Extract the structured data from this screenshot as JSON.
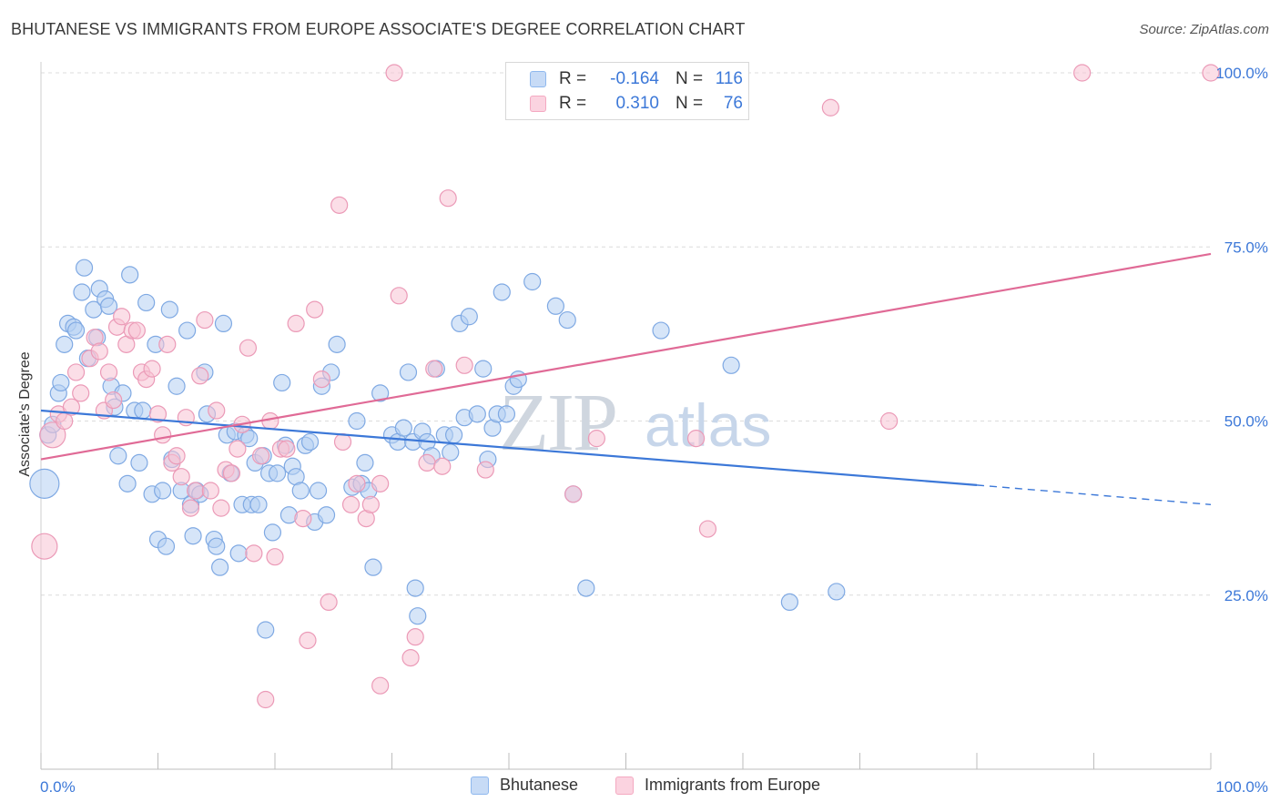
{
  "title": "BHUTANESE VS IMMIGRANTS FROM EUROPE ASSOCIATE'S DEGREE CORRELATION CHART",
  "source": "Source: ZipAtlas.com",
  "watermark": {
    "part1": "ZIP",
    "part2": "atlas"
  },
  "legend_top": {
    "rows": [
      {
        "r_label": "R =",
        "r_value": "-0.164",
        "n_label": "N =",
        "n_value": "116",
        "color": "#8fb8ee"
      },
      {
        "r_label": "R =",
        "r_value": "0.310",
        "n_label": "N =",
        "n_value": "76",
        "color": "#f4a9c1"
      }
    ]
  },
  "legend_bottom": [
    {
      "label": "Bhutanese",
      "color": "#8fb8ee"
    },
    {
      "label": "Immigrants from Europe",
      "color": "#f4a9c1"
    }
  ],
  "chart_data": {
    "type": "scatter",
    "title": "BHUTANESE VS IMMIGRANTS FROM EUROPE ASSOCIATE'S DEGREE CORRELATION CHART",
    "xlabel": "",
    "ylabel": "Associate's Degree",
    "xlim": [
      0,
      100
    ],
    "ylim": [
      0,
      100
    ],
    "x_tick_labels": [
      "0.0%",
      "100.0%"
    ],
    "y_tick_labels": [
      "25.0%",
      "50.0%",
      "75.0%",
      "100.0%"
    ],
    "y_ticks": [
      25,
      50,
      75,
      100
    ],
    "grid": true,
    "series": [
      {
        "name": "Bhutanese",
        "color": "#3c78d8",
        "fill": "#b5cff3",
        "trend": {
          "x": [
            0,
            80,
            100
          ],
          "y": [
            51.5,
            40.8,
            38.0
          ],
          "solid_until": 80
        },
        "points": [
          [
            0.3,
            41,
            3
          ],
          [
            0.6,
            48,
            1
          ],
          [
            1,
            49.5,
            1
          ],
          [
            1.5,
            54,
            1
          ],
          [
            1.7,
            55.5,
            1
          ],
          [
            2,
            61,
            1
          ],
          [
            2.3,
            64,
            1
          ],
          [
            2.8,
            63.5,
            1
          ],
          [
            3,
            63,
            1
          ],
          [
            3.5,
            68.5,
            1
          ],
          [
            3.7,
            72,
            1
          ],
          [
            4,
            59,
            1
          ],
          [
            4.5,
            66,
            1
          ],
          [
            4.8,
            62,
            1
          ],
          [
            5,
            69,
            1
          ],
          [
            5.5,
            67.5,
            1
          ],
          [
            5.8,
            66.5,
            1
          ],
          [
            6,
            55,
            1
          ],
          [
            6.3,
            52,
            1
          ],
          [
            6.6,
            45,
            1
          ],
          [
            7,
            54,
            1
          ],
          [
            7.4,
            41,
            1
          ],
          [
            7.6,
            71,
            1
          ],
          [
            8,
            51.5,
            1
          ],
          [
            8.4,
            44,
            1
          ],
          [
            8.7,
            51.5,
            1
          ],
          [
            9,
            67,
            1
          ],
          [
            9.5,
            39.5,
            1
          ],
          [
            9.8,
            61,
            1
          ],
          [
            10,
            33,
            1
          ],
          [
            10.4,
            40,
            1
          ],
          [
            10.7,
            32,
            1
          ],
          [
            11,
            66,
            1
          ],
          [
            11.2,
            44.5,
            1
          ],
          [
            11.6,
            55,
            1
          ],
          [
            12,
            40,
            1
          ],
          [
            12.5,
            63,
            1
          ],
          [
            12.8,
            38,
            1
          ],
          [
            13,
            33.5,
            1
          ],
          [
            13.3,
            40,
            1
          ],
          [
            13.6,
            39.5,
            1
          ],
          [
            14,
            57,
            1
          ],
          [
            14.2,
            51,
            1
          ],
          [
            14.8,
            33,
            1
          ],
          [
            15,
            32,
            1
          ],
          [
            15.3,
            29,
            1
          ],
          [
            15.6,
            64,
            1
          ],
          [
            15.9,
            48,
            1
          ],
          [
            16.2,
            42.5,
            1
          ],
          [
            16.6,
            48.5,
            1
          ],
          [
            16.9,
            31,
            1
          ],
          [
            17.2,
            38,
            1
          ],
          [
            17.5,
            48,
            1
          ],
          [
            17.8,
            47.5,
            1
          ],
          [
            18,
            38,
            1
          ],
          [
            18.3,
            44,
            1
          ],
          [
            18.6,
            38,
            1
          ],
          [
            19,
            45,
            1
          ],
          [
            19.2,
            20,
            1
          ],
          [
            19.5,
            42.5,
            1
          ],
          [
            19.8,
            34,
            1
          ],
          [
            20.2,
            42.5,
            1
          ],
          [
            20.6,
            55.5,
            1
          ],
          [
            20.9,
            46.5,
            1
          ],
          [
            21.2,
            36.5,
            1
          ],
          [
            21.5,
            43.5,
            1
          ],
          [
            21.8,
            42,
            1
          ],
          [
            22.2,
            40,
            1
          ],
          [
            22.6,
            46.5,
            1
          ],
          [
            23,
            47,
            1
          ],
          [
            23.4,
            35.5,
            1
          ],
          [
            23.7,
            40,
            1
          ],
          [
            24,
            55,
            1
          ],
          [
            24.4,
            36.5,
            1
          ],
          [
            24.8,
            57,
            1
          ],
          [
            25.3,
            61,
            1
          ],
          [
            26.6,
            40.5,
            1
          ],
          [
            27,
            50,
            1
          ],
          [
            27.4,
            41,
            1
          ],
          [
            27.7,
            44,
            1
          ],
          [
            28,
            40,
            1
          ],
          [
            28.4,
            29,
            1
          ],
          [
            29,
            54,
            1
          ],
          [
            30,
            48,
            1
          ],
          [
            30.5,
            47,
            1
          ],
          [
            31,
            49,
            1
          ],
          [
            31.4,
            57,
            1
          ],
          [
            31.8,
            47,
            1
          ],
          [
            32,
            26,
            1
          ],
          [
            32.2,
            22,
            1
          ],
          [
            32.6,
            48.5,
            1
          ],
          [
            33,
            47,
            1
          ],
          [
            33.4,
            45,
            1
          ],
          [
            33.8,
            57.5,
            1
          ],
          [
            34.5,
            48,
            1
          ],
          [
            35,
            45.5,
            1
          ],
          [
            35.3,
            48,
            1
          ],
          [
            35.8,
            64,
            1
          ],
          [
            36.2,
            50.5,
            1
          ],
          [
            36.6,
            65,
            1
          ],
          [
            37.3,
            51,
            1
          ],
          [
            37.8,
            57.5,
            1
          ],
          [
            38.2,
            44.5,
            1
          ],
          [
            38.6,
            49,
            1
          ],
          [
            39,
            51,
            1
          ],
          [
            39.4,
            68.5,
            1
          ],
          [
            39.8,
            51,
            1
          ],
          [
            40.4,
            55,
            1
          ],
          [
            40.8,
            56,
            1
          ],
          [
            42,
            70,
            1
          ],
          [
            44,
            66.5,
            1
          ],
          [
            45,
            64.5,
            1
          ],
          [
            45.5,
            39.5,
            1
          ],
          [
            46.6,
            26,
            1
          ],
          [
            53,
            63,
            1
          ],
          [
            59,
            58,
            1
          ],
          [
            64,
            24,
            1
          ],
          [
            68,
            25.5,
            1
          ]
        ]
      },
      {
        "name": "Immigrants from Europe",
        "color": "#e06a96",
        "fill": "#f7c3d4",
        "trend": {
          "x": [
            0,
            100
          ],
          "y": [
            44.5,
            74.0
          ]
        },
        "points": [
          [
            0.3,
            32,
            2
          ],
          [
            1,
            48,
            2
          ],
          [
            1.5,
            51,
            1
          ],
          [
            2,
            50,
            1
          ],
          [
            2.6,
            52,
            1
          ],
          [
            3,
            57,
            1
          ],
          [
            3.4,
            54,
            1
          ],
          [
            4.2,
            59,
            1
          ],
          [
            4.6,
            62,
            1
          ],
          [
            5,
            60,
            1
          ],
          [
            5.4,
            51.5,
            1
          ],
          [
            5.8,
            57,
            1
          ],
          [
            6.2,
            53,
            1
          ],
          [
            6.5,
            63.5,
            1
          ],
          [
            6.9,
            65,
            1
          ],
          [
            7.3,
            61,
            1
          ],
          [
            7.8,
            63,
            1
          ],
          [
            8.2,
            63,
            1
          ],
          [
            8.6,
            57,
            1
          ],
          [
            9,
            56,
            1
          ],
          [
            9.5,
            57.5,
            1
          ],
          [
            10,
            51,
            1
          ],
          [
            10.4,
            48,
            1
          ],
          [
            10.8,
            61,
            1
          ],
          [
            11.2,
            44,
            1
          ],
          [
            11.6,
            45,
            1
          ],
          [
            12,
            42,
            1
          ],
          [
            12.4,
            50.5,
            1
          ],
          [
            12.8,
            37.5,
            1
          ],
          [
            13.2,
            40,
            1
          ],
          [
            13.6,
            56.5,
            1
          ],
          [
            14,
            64.5,
            1
          ],
          [
            14.5,
            40,
            1
          ],
          [
            15,
            51.5,
            1
          ],
          [
            15.4,
            37.5,
            1
          ],
          [
            15.8,
            43,
            1
          ],
          [
            16.3,
            42.5,
            1
          ],
          [
            16.8,
            46,
            1
          ],
          [
            17.2,
            49.5,
            1
          ],
          [
            17.7,
            60.5,
            1
          ],
          [
            18.2,
            31,
            1
          ],
          [
            18.8,
            45,
            1
          ],
          [
            19.2,
            10,
            1
          ],
          [
            19.6,
            50,
            1
          ],
          [
            20,
            30.5,
            1
          ],
          [
            20.5,
            46,
            1
          ],
          [
            21,
            46,
            1
          ],
          [
            21.8,
            64,
            1
          ],
          [
            22.4,
            36,
            1
          ],
          [
            22.8,
            18.5,
            1
          ],
          [
            23.4,
            66,
            1
          ],
          [
            24,
            56,
            1
          ],
          [
            24.6,
            24,
            1
          ],
          [
            25.5,
            81,
            1
          ],
          [
            25.8,
            47,
            1
          ],
          [
            26.5,
            38,
            1
          ],
          [
            27,
            41,
            1
          ],
          [
            27.8,
            36,
            1
          ],
          [
            28.2,
            38,
            1
          ],
          [
            29,
            41,
            1
          ],
          [
            29,
            12,
            1
          ],
          [
            30.2,
            100,
            1
          ],
          [
            30.6,
            68,
            1
          ],
          [
            31.6,
            16,
            1
          ],
          [
            32,
            19,
            1
          ],
          [
            33,
            44,
            1
          ],
          [
            33.6,
            57.5,
            1
          ],
          [
            34.3,
            43.5,
            1
          ],
          [
            34.8,
            82,
            1
          ],
          [
            36.2,
            58,
            1
          ],
          [
            38,
            43,
            1
          ],
          [
            45.5,
            39.5,
            1
          ],
          [
            47.5,
            47.5,
            1
          ],
          [
            56,
            47.5,
            1
          ],
          [
            57,
            34.5,
            1
          ],
          [
            67.5,
            95,
            1
          ],
          [
            72.5,
            50,
            1
          ],
          [
            89,
            100,
            1
          ],
          [
            100,
            100,
            1
          ]
        ]
      }
    ]
  }
}
